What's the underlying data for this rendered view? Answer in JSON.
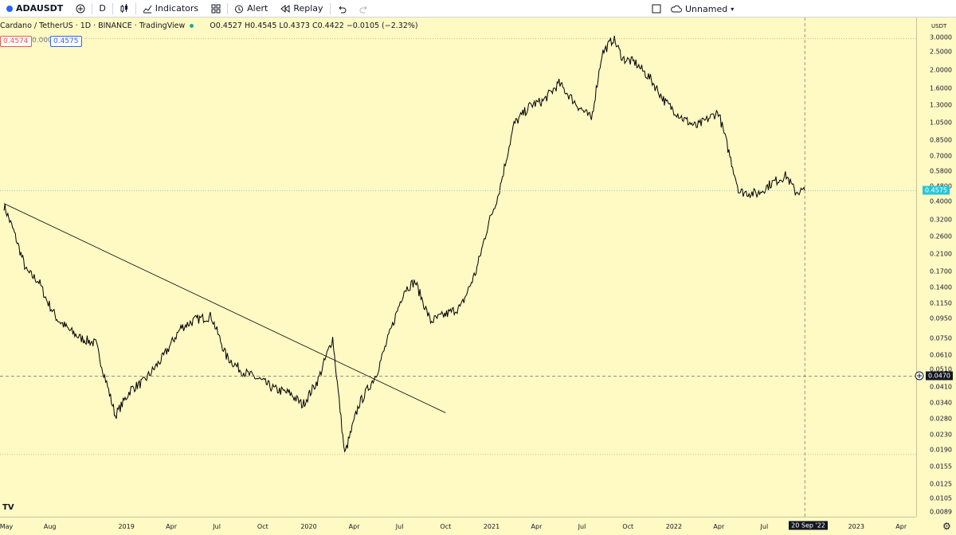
{
  "toolbar": {
    "symbol": "ADAUSDT",
    "interval": "D",
    "indicators": "Indicators",
    "alert": "Alert",
    "replay": "Replay",
    "layout_name": "Unnamed"
  },
  "legend": {
    "title": "Cardano / TetherUS · 1D · BINANCE · TradingView",
    "ohlc": "O0.4527  H0.4545  L0.4373  C0.4422  −0.0105 (−2.32%)",
    "bid": "0.4574",
    "spread": "0.0001",
    "ask": "0.4575"
  },
  "price_axis": {
    "unit": "USDT",
    "current_price_badge": "0.4575",
    "crosshair_price_badge": "0.0470",
    "crosshair_date_badge": "20 Sep '22"
  },
  "colors": {
    "background": "#fff9c4",
    "price_badge": "#26c6da",
    "crosshair_badge": "#131722",
    "candles": "#000000",
    "trendline": "#000000"
  },
  "chart_data": {
    "type": "line",
    "title": "Cardano / TetherUS · 1D · BINANCE · TradingView",
    "yscale": "log",
    "ylim": [
      0.0089,
      3.2
    ],
    "y_ticks": [
      "3.0000",
      "2.5000",
      "2.0000",
      "1.6000",
      "1.3000",
      "1.0500",
      "0.8500",
      "0.7000",
      "0.5800",
      "0.4800",
      "0.4000",
      "0.3200",
      "0.2600",
      "0.2100",
      "0.1700",
      "0.1400",
      "0.1150",
      "0.0950",
      "0.0750",
      "0.0610",
      "0.0510",
      "0.0410",
      "0.0340",
      "0.0280",
      "0.0230",
      "0.0190",
      "0.0155",
      "0.0125",
      "0.0105",
      "0.0089"
    ],
    "x_ticks": [
      "May",
      "Aug",
      "2019",
      "Apr",
      "Jul",
      "Oct",
      "2020",
      "Apr",
      "Jul",
      "Oct",
      "2021",
      "Apr",
      "Jul",
      "Oct",
      "2022",
      "Apr",
      "Jul",
      "2023",
      "Apr"
    ],
    "series": [
      {
        "x": [
          "2018-05-01",
          "2018-05-20",
          "2018-06-15",
          "2018-07-10",
          "2018-07-25",
          "2018-08-15",
          "2018-09-10",
          "2018-10-01",
          "2018-11-01",
          "2018-12-10",
          "2019-01-10",
          "2019-02-05",
          "2019-03-15",
          "2019-04-20",
          "2019-05-20",
          "2019-06-20",
          "2019-07-20",
          "2019-08-20",
          "2019-09-25",
          "2019-10-25",
          "2019-11-25",
          "2019-12-20",
          "2020-01-20",
          "2020-02-18",
          "2020-03-13",
          "2020-04-10",
          "2020-05-15",
          "2020-06-15",
          "2020-07-10",
          "2020-08-01",
          "2020-09-01",
          "2020-10-01",
          "2020-11-01",
          "2020-12-01",
          "2020-12-25",
          "2021-01-15",
          "2021-02-15",
          "2021-03-20",
          "2021-04-14",
          "2021-05-16",
          "2021-06-22",
          "2021-07-20",
          "2021-08-10",
          "2021-09-02",
          "2021-09-21",
          "2021-10-15",
          "2021-11-15",
          "2021-12-15",
          "2022-01-20",
          "2022-02-15",
          "2022-03-31",
          "2022-05-12",
          "2022-06-18",
          "2022-07-15",
          "2022-08-14",
          "2022-09-01",
          "2022-09-20"
        ],
        "values": [
          0.38,
          0.28,
          0.17,
          0.15,
          0.12,
          0.095,
          0.082,
          0.075,
          0.07,
          0.029,
          0.04,
          0.044,
          0.059,
          0.085,
          0.094,
          0.098,
          0.06,
          0.05,
          0.045,
          0.04,
          0.038,
          0.033,
          0.045,
          0.075,
          0.018,
          0.033,
          0.048,
          0.085,
          0.135,
          0.15,
          0.092,
          0.1,
          0.11,
          0.17,
          0.3,
          0.44,
          1.03,
          1.3,
          1.37,
          1.7,
          1.3,
          1.1,
          2.45,
          2.95,
          2.3,
          2.2,
          1.8,
          1.35,
          1.1,
          1.0,
          1.2,
          0.45,
          0.44,
          0.5,
          0.55,
          0.45,
          0.4575
        ]
      },
      {
        "name": "",
        "x": [
          "2018-05-01",
          "2020-10-01"
        ],
        "values": [
          0.39,
          0.03
        ]
      }
    ]
  }
}
